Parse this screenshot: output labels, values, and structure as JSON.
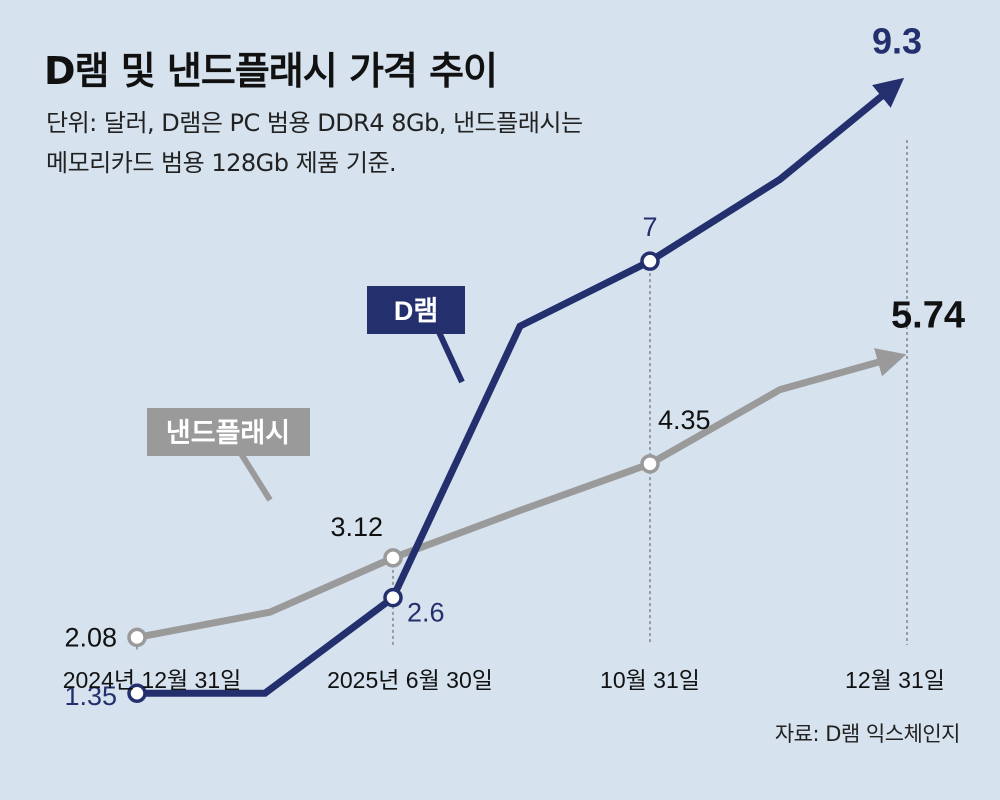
{
  "title": "D램 및 낸드플래시 가격 추이",
  "subtitle_line1": "단위: 달러, D램은 PC 범용 DDR4 8Gb, 낸드플래시는",
  "subtitle_line2": "메모리카드 범용 128Gb 제품 기준.",
  "source": "자료: D램 익스체인지",
  "colors": {
    "background": "#d6e2ee",
    "dram": "#24306e",
    "nand": "#9a9a9a",
    "text": "#111111"
  },
  "chart_data": {
    "type": "line",
    "title": "D램 및 낸드플래시 가격 추이",
    "ylabel": "달러",
    "xlabel": "",
    "grid": false,
    "ylim": [
      1,
      9.5
    ],
    "categories": [
      "2024년 12월 31일",
      "2025년 6월 30일",
      "10월 31일",
      "12월 31일"
    ],
    "series": [
      {
        "name": "D램",
        "label": "D램",
        "values": [
          1.35,
          2.6,
          7,
          9.3
        ],
        "labels": [
          "1.35",
          "2.6",
          "7",
          "9.3"
        ]
      },
      {
        "name": "낸드플래시",
        "label": "낸드플래시",
        "values": [
          2.08,
          3.12,
          4.35,
          5.74
        ],
        "labels": [
          "2.08",
          "3.12",
          "4.35",
          "5.74"
        ]
      }
    ]
  }
}
